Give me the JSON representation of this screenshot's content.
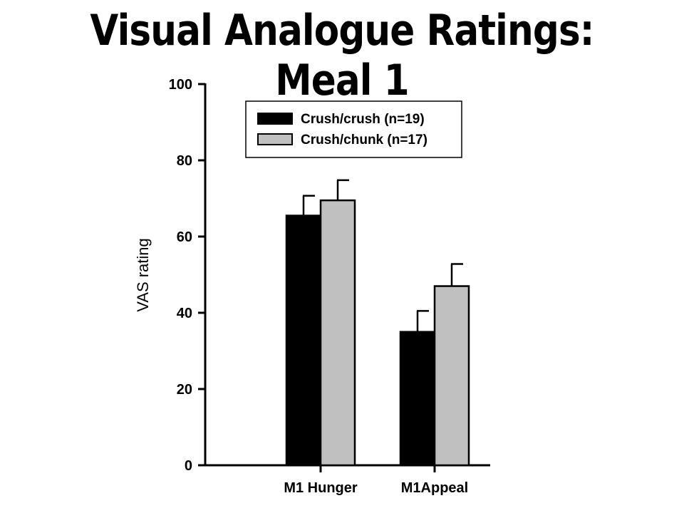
{
  "chart_data": {
    "type": "bar",
    "title": "Visual Analogue Ratings: Meal 1",
    "xlabel": "",
    "ylabel": "VAS rating",
    "ylim": [
      0,
      100
    ],
    "yticks": [
      0,
      20,
      40,
      60,
      80,
      100
    ],
    "categories": [
      "M1 Hunger",
      "M1Appeal"
    ],
    "series": [
      {
        "name": "Crush/crush (n=19)",
        "color": "#000000",
        "values": [
          65.5,
          35
        ],
        "errors": [
          5.2,
          5.5
        ]
      },
      {
        "name": "Crush/chunk (n=17)",
        "color": "#c0c0c0",
        "values": [
          69.5,
          47
        ],
        "errors": [
          5.3,
          5.8
        ]
      }
    ],
    "legend": "top-left",
    "grid": false
  }
}
